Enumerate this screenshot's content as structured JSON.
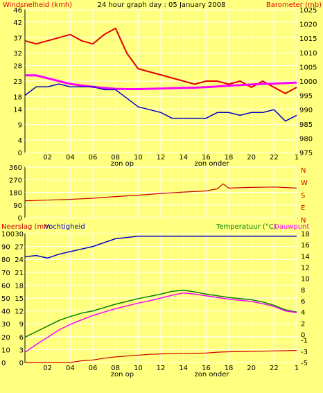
{
  "header": {
    "title": "24 hour graph day : 05 January 2008",
    "left_label": "Windsnelheid (kmh)",
    "right_label": "Barometer (mb)"
  },
  "middle": {
    "direction_labels": [
      "N",
      "W",
      "S",
      "E",
      "N"
    ]
  },
  "bottom": {
    "left_label_a": "Neerslag (mm",
    "left_label_b": "Vochtigheid",
    "right_label_a": "Temperatuur (°C)",
    "right_label_b": "Dauwpunt"
  },
  "annotations": {
    "sunrise": "zon op",
    "sunset": "zon onder"
  },
  "colors": {
    "background": "#ffff80",
    "plot_background": "#ffff80",
    "grid": "#ffffff",
    "wind": "#e00000",
    "barometer": "#ff00ff",
    "baro_mirror": "#0000cc",
    "direction": "#cc0000",
    "rain": "#cc0000",
    "humidity": "#0000cc",
    "temperature": "#008000",
    "dewpoint": "#ff00ff"
  },
  "chart_data": [
    {
      "type": "line",
      "title": "24 hour graph day : 05 January 2008",
      "x": {
        "label": "",
        "ticks": [
          "02",
          "04",
          "06",
          "08",
          "10",
          "12",
          "14",
          "16",
          "18",
          "20",
          "22",
          "1"
        ],
        "range": [
          0,
          24
        ]
      },
      "y_left": {
        "label": "Windsnelheid (kmh)",
        "ticks": [
          0,
          4,
          9,
          14,
          18,
          23,
          28,
          32,
          37,
          42,
          46
        ],
        "range": [
          0,
          46
        ]
      },
      "y_right": {
        "label": "Barometer (mb)",
        "ticks": [
          975,
          980,
          985,
          990,
          995,
          1000,
          1005,
          1010,
          1015,
          1020,
          1025
        ],
        "range": [
          975,
          1025
        ]
      },
      "series": [
        {
          "name": "Windsnelheid",
          "axis": "left",
          "points": [
            [
              0,
              36
            ],
            [
              1,
              35
            ],
            [
              2,
              36
            ],
            [
              3,
              37
            ],
            [
              4,
              38
            ],
            [
              5,
              36
            ],
            [
              6,
              35
            ],
            [
              7,
              38
            ],
            [
              8,
              40
            ],
            [
              9,
              32
            ],
            [
              10,
              27
            ],
            [
              11,
              26
            ],
            [
              12,
              25
            ],
            [
              13,
              24
            ],
            [
              14,
              23
            ],
            [
              15,
              22
            ],
            [
              16,
              23
            ],
            [
              17,
              23
            ],
            [
              18,
              22
            ],
            [
              19,
              23
            ],
            [
              20,
              21
            ],
            [
              21,
              23
            ],
            [
              22,
              21
            ],
            [
              23,
              19
            ],
            [
              24,
              21
            ]
          ]
        },
        {
          "name": "Barometer",
          "axis": "right",
          "points": [
            [
              0,
              1002
            ],
            [
              1,
              1002
            ],
            [
              2,
              1001
            ],
            [
              3,
              1000
            ],
            [
              4,
              999
            ],
            [
              5,
              998.5
            ],
            [
              6,
              998
            ],
            [
              7,
              997.6
            ],
            [
              8,
              997.3
            ],
            [
              9,
              997.2
            ],
            [
              10,
              997.2
            ],
            [
              11,
              997.3
            ],
            [
              12,
              997.4
            ],
            [
              13,
              997.5
            ],
            [
              14,
              997.6
            ],
            [
              15,
              997.7
            ],
            [
              16,
              997.9
            ],
            [
              17,
              998.1
            ],
            [
              18,
              998.4
            ],
            [
              19,
              998.6
            ],
            [
              20,
              998.8
            ],
            [
              21,
              999
            ],
            [
              22,
              999.1
            ],
            [
              23,
              999.3
            ],
            [
              24,
              999.5
            ]
          ]
        },
        {
          "name": "",
          "axis": "right",
          "points": [
            [
              0,
              995
            ],
            [
              1,
              998
            ],
            [
              2,
              998
            ],
            [
              3,
              999
            ],
            [
              4,
              998
            ],
            [
              5,
              998
            ],
            [
              6,
              998
            ],
            [
              7,
              997
            ],
            [
              8,
              997
            ],
            [
              9,
              994
            ],
            [
              10,
              991
            ],
            [
              11,
              990
            ],
            [
              12,
              989
            ],
            [
              13,
              987
            ],
            [
              14,
              987
            ],
            [
              15,
              987
            ],
            [
              16,
              987
            ],
            [
              17,
              989
            ],
            [
              18,
              989
            ],
            [
              19,
              988
            ],
            [
              20,
              989
            ],
            [
              21,
              989
            ],
            [
              22,
              990
            ],
            [
              23,
              986
            ],
            [
              24,
              988
            ]
          ]
        }
      ]
    },
    {
      "type": "line",
      "x": {
        "label": "",
        "range": [
          0,
          24
        ]
      },
      "y": {
        "label": "",
        "ticks": [
          0,
          90,
          180,
          270,
          360
        ],
        "range": [
          0,
          360
        ]
      },
      "series": [
        {
          "name": "",
          "points": [
            [
              0,
              120
            ],
            [
              2,
              125
            ],
            [
              4,
              130
            ],
            [
              6,
              138
            ],
            [
              8,
              150
            ],
            [
              10,
              160
            ],
            [
              12,
              172
            ],
            [
              14,
              182
            ],
            [
              16,
              190
            ],
            [
              17,
              205
            ],
            [
              17.5,
              240
            ],
            [
              18,
              210
            ],
            [
              20,
              215
            ],
            [
              22,
              218
            ],
            [
              24,
              210
            ]
          ]
        }
      ]
    },
    {
      "type": "line",
      "x": {
        "label": "",
        "ticks": [
          "02",
          "04",
          "06",
          "08",
          "10",
          "12",
          "14",
          "16",
          "18",
          "20",
          "22",
          "1"
        ],
        "range": [
          0,
          24
        ]
      },
      "y_left_rain": {
        "label": "Neerslag (mm",
        "ticks": [
          0,
          3,
          6,
          9,
          12,
          15,
          18,
          21,
          24,
          27,
          30
        ],
        "range": [
          0,
          30
        ]
      },
      "y_left_humidity": {
        "label": "Vochtigheid",
        "ticks": [
          0,
          10,
          20,
          30,
          40,
          50,
          60,
          70,
          80,
          90,
          100
        ],
        "range": [
          0,
          100
        ]
      },
      "y_right": {
        "label": "Temperatuur (°C)",
        "ticks": [
          -5,
          -3,
          -1,
          0,
          2,
          4,
          6,
          8,
          10,
          12,
          14,
          16,
          18
        ],
        "range": [
          -5,
          18
        ]
      },
      "series": [
        {
          "name": "Vochtigheid",
          "axis": "humidity",
          "points": [
            [
              0,
              82
            ],
            [
              1,
              83
            ],
            [
              2,
              81
            ],
            [
              3,
              84
            ],
            [
              4,
              86
            ],
            [
              5,
              88
            ],
            [
              6,
              90
            ],
            [
              7,
              93
            ],
            [
              8,
              96
            ],
            [
              9,
              97
            ],
            [
              10,
              98
            ],
            [
              12,
              98
            ],
            [
              14,
              98
            ],
            [
              16,
              98
            ],
            [
              18,
              98
            ],
            [
              20,
              98
            ],
            [
              22,
              98
            ],
            [
              24,
              98
            ]
          ]
        },
        {
          "name": "Temperatuur",
          "axis": "right",
          "points": [
            [
              0,
              -0.5
            ],
            [
              1,
              0.5
            ],
            [
              2,
              1.5
            ],
            [
              3,
              2.5
            ],
            [
              4,
              3.2
            ],
            [
              5,
              3.8
            ],
            [
              6,
              4.2
            ],
            [
              7,
              4.8
            ],
            [
              8,
              5.4
            ],
            [
              9,
              5.9
            ],
            [
              10,
              6.4
            ],
            [
              11,
              6.8
            ],
            [
              12,
              7.2
            ],
            [
              13,
              7.7
            ],
            [
              14,
              7.9
            ],
            [
              15,
              7.6
            ],
            [
              16,
              7.2
            ],
            [
              17,
              6.9
            ],
            [
              18,
              6.6
            ],
            [
              19,
              6.4
            ],
            [
              20,
              6.2
            ],
            [
              21,
              5.8
            ],
            [
              22,
              5.2
            ],
            [
              23,
              4.4
            ],
            [
              24,
              4.0
            ]
          ]
        },
        {
          "name": "Dauwpunt",
          "axis": "right",
          "points": [
            [
              0,
              -3.2
            ],
            [
              1,
              -1.8
            ],
            [
              2,
              -0.5
            ],
            [
              3,
              0.8
            ],
            [
              4,
              1.8
            ],
            [
              5,
              2.6
            ],
            [
              6,
              3.4
            ],
            [
              7,
              4.0
            ],
            [
              8,
              4.6
            ],
            [
              9,
              5.1
            ],
            [
              10,
              5.6
            ],
            [
              11,
              6.0
            ],
            [
              12,
              6.5
            ],
            [
              13,
              7.0
            ],
            [
              14,
              7.4
            ],
            [
              15,
              7.2
            ],
            [
              16,
              6.9
            ],
            [
              17,
              6.6
            ],
            [
              18,
              6.3
            ],
            [
              19,
              6.1
            ],
            [
              20,
              5.9
            ],
            [
              21,
              5.5
            ],
            [
              22,
              5.0
            ],
            [
              23,
              4.2
            ],
            [
              24,
              3.9
            ]
          ]
        },
        {
          "name": "Neerslag",
          "axis": "rain",
          "points": [
            [
              0,
              0
            ],
            [
              4,
              0
            ],
            [
              5,
              0.4
            ],
            [
              6,
              0.6
            ],
            [
              7,
              1.0
            ],
            [
              8,
              1.3
            ],
            [
              9,
              1.5
            ],
            [
              10,
              1.7
            ],
            [
              11,
              1.9
            ],
            [
              12,
              2.0
            ],
            [
              14,
              2.1
            ],
            [
              16,
              2.2
            ],
            [
              17,
              2.4
            ],
            [
              18,
              2.5
            ],
            [
              20,
              2.6
            ],
            [
              22,
              2.7
            ],
            [
              24,
              2.8
            ]
          ]
        }
      ]
    }
  ]
}
